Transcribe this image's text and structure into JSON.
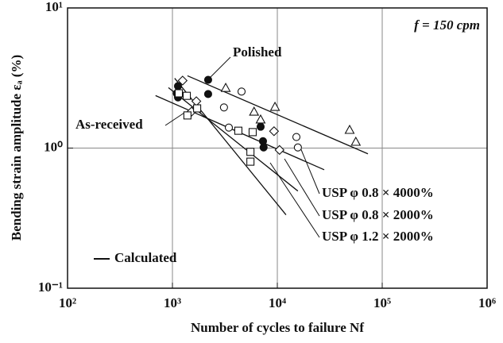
{
  "chart_data": {
    "type": "scatter",
    "x_label": "Number of cycles to failure Nf",
    "y_label": "Bending strain amplitude εₐ (%)",
    "xscale": "log",
    "yscale": "log",
    "grid": true,
    "xlim": [
      100,
      1000000
    ],
    "xticks": [
      {
        "value": 100,
        "label": "10²"
      },
      {
        "value": 1000,
        "label": "10³"
      },
      {
        "value": 10000,
        "label": "10⁴"
      },
      {
        "value": 100000,
        "label": "10⁵"
      },
      {
        "value": 1000000,
        "label": "10⁶"
      }
    ],
    "ylim": [
      0.1,
      10
    ],
    "yticks": [
      {
        "value": 0.1,
        "label": "10⁻¹"
      },
      {
        "value": 1,
        "label": "10⁰"
      },
      {
        "value": 10,
        "label": "10¹"
      }
    ],
    "series": [
      {
        "name": "Polished",
        "marker": "filled-circle",
        "x": [
          2190,
          1130,
          1100,
          1130,
          2190,
          6930,
          7300,
          7400
        ],
        "values": [
          3.07,
          2.77,
          2.46,
          2.3,
          2.43,
          1.42,
          1.12,
          1.01
        ]
      },
      {
        "marker": "circle",
        "x": [
          4560,
          3100,
          3450,
          15200,
          15700
        ],
        "values": [
          2.53,
          1.95,
          1.4,
          1.2,
          1.01
        ]
      },
      {
        "marker": "triangle",
        "x": [
          3220,
          6000,
          6930,
          9500,
          48900,
          56000
        ],
        "values": [
          2.69,
          1.82,
          1.6,
          1.97,
          1.35,
          1.11
        ]
      },
      {
        "marker": "diamond",
        "x": [
          1250,
          1690,
          1520,
          9300,
          10500
        ],
        "values": [
          3.03,
          2.16,
          1.82,
          1.32,
          0.97
        ]
      },
      {
        "name": "As-received",
        "marker": "square",
        "x": [
          1150,
          1370,
          1720,
          1390,
          4250,
          5820,
          5540,
          5540
        ],
        "values": [
          2.46,
          2.36,
          1.92,
          1.71,
          1.33,
          1.3,
          0.94,
          0.8
        ]
      }
    ],
    "lines": [
      {
        "x": [
          1390,
          73100
        ],
        "values": [
          3.28,
          0.91
        ]
      },
      {
        "name": "USP φ 0.8 × 4000%",
        "x": [
          690,
          28000
        ],
        "values": [
          2.37,
          0.7
        ]
      },
      {
        "name": "USP φ 0.8 × 2000%",
        "x": [
          916,
          15700
        ],
        "values": [
          2.7,
          0.494
        ]
      },
      {
        "name": "USP φ 1.2 × 2000%",
        "x": [
          1050,
          12100
        ],
        "values": [
          3.15,
          0.334
        ]
      }
    ],
    "line_legend": "Calculated",
    "annotation": "f = 150 cpm"
  }
}
